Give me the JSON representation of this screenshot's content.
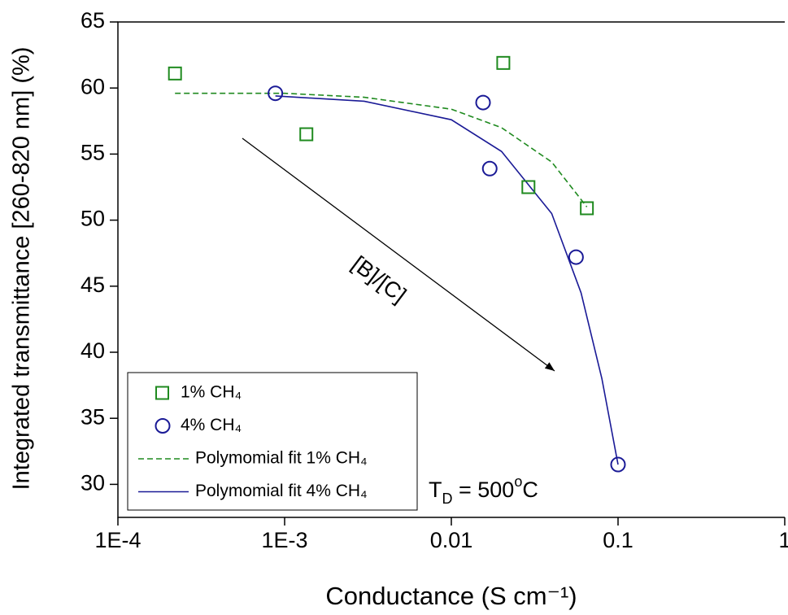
{
  "chart_data": {
    "type": "scatter",
    "xlabel": "Conductance (S cm⁻¹)",
    "ylabel": "Integrated transmittance [260-820 nm] (%)",
    "xscale": "log",
    "xlim": [
      0.0001,
      1
    ],
    "xticks": [
      {
        "value": 0.0001,
        "label": "1E-4"
      },
      {
        "value": 0.001,
        "label": "1E-3"
      },
      0.01,
      0.1,
      1
    ],
    "ylim": [
      27.5,
      65
    ],
    "yticks": [
      30,
      35,
      40,
      45,
      50,
      55,
      60,
      65
    ],
    "series": [
      {
        "name": "1% CH₄",
        "color": "#1f8a1f",
        "marker": "square",
        "x": [
          0.00022,
          0.00135,
          0.0205,
          0.029,
          0.065
        ],
        "values": [
          61.1,
          56.5,
          61.9,
          52.5,
          50.9
        ]
      },
      {
        "name": "4% CH₄",
        "color": "#1a1a96",
        "marker": "circle",
        "x": [
          0.00088,
          0.0155,
          0.017,
          0.056,
          0.1
        ],
        "values": [
          59.6,
          58.9,
          53.9,
          47.2,
          31.5
        ]
      },
      {
        "name": "Polymomial fit 1% CH₄",
        "color": "#1f8a1f",
        "marker": "dashed-line",
        "x": [
          0.00022,
          0.001,
          0.003,
          0.01,
          0.02,
          0.04,
          0.065
        ],
        "values": [
          59.6,
          59.6,
          59.3,
          58.4,
          57.0,
          54.4,
          51.0
        ]
      },
      {
        "name": "Polymomial fit 4% CH₄",
        "color": "#1a1a96",
        "marker": "line",
        "x": [
          0.00088,
          0.003,
          0.01,
          0.02,
          0.04,
          0.06,
          0.08,
          0.1
        ],
        "values": [
          59.4,
          59.0,
          57.6,
          55.2,
          50.5,
          44.5,
          38.0,
          31.5
        ]
      }
    ],
    "annotations": {
      "arrow_label": "[B]/[C]",
      "td": [
        "T",
        "D",
        " = 500",
        "o",
        "C"
      ]
    }
  }
}
